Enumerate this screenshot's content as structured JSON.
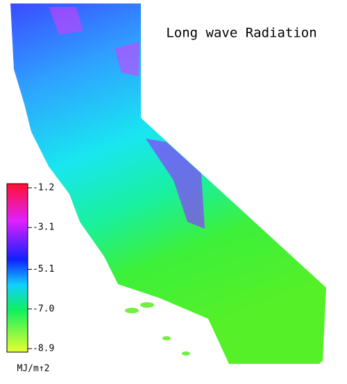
{
  "title": "Long wave Radiation",
  "colorbar": {
    "range": [
      -8.9,
      -1.2
    ],
    "ticks": [
      -1.2,
      -3.1,
      -5.1,
      {
        "value": -7,
        "label": "-7.0"
      },
      -8.9
    ],
    "unit": "MJ/m↑2"
  }
}
